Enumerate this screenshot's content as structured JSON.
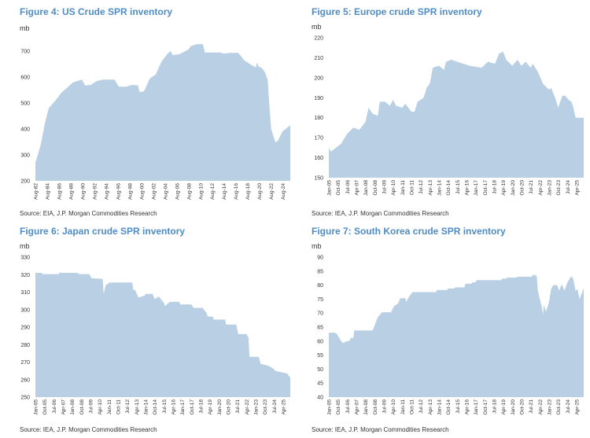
{
  "colors": {
    "title": "#4f8cc4",
    "fill": "#b9cfe4"
  },
  "chart_data": [
    {
      "type": "area",
      "title": "Figure 4: US Crude SPR inventory",
      "ylabel": "mb",
      "source": "Source: EIA, J.P. Morgan Commodities Research",
      "ylim": [
        200,
        700
      ],
      "yticks": [
        "200",
        "300",
        "400",
        "500",
        "600",
        "700"
      ],
      "xlim": [
        "1982-08",
        "2025-11"
      ],
      "xticks": [
        "Aug-82",
        "Aug-84",
        "Aug-86",
        "Aug-88",
        "Aug-90",
        "Aug-92",
        "Aug-94",
        "Aug-96",
        "Aug-98",
        "Aug-00",
        "Aug-02",
        "Aug-04",
        "Aug-06",
        "Aug-08",
        "Aug-10",
        "Aug-12",
        "Aug-14",
        "Aug-16",
        "Aug-18",
        "Aug-20",
        "Aug-22",
        "Aug-24"
      ],
      "grid": false,
      "x": [
        "1982-08",
        "1983-07",
        "1984-03",
        "1984-11",
        "1986-01",
        "1987-01",
        "1988-01",
        "1989-01",
        "1990-07",
        "1991-01",
        "1992-01",
        "1993-01",
        "1994-01",
        "1996-01",
        "1996-10",
        "1998-01",
        "1999-01",
        "2000-01",
        "2000-04",
        "2001-01",
        "2002-01",
        "2003-01",
        "2004-01",
        "2005-01",
        "2005-08",
        "2005-11",
        "2007-01",
        "2008-01",
        "2008-07",
        "2009-01",
        "2010-01",
        "2011-01",
        "2011-05",
        "2014-01",
        "2014-08",
        "2015-07",
        "2017-01",
        "2017-07",
        "2018-01",
        "2019-01",
        "2020-01",
        "2020-03",
        "2020-07",
        "2021-01",
        "2021-07",
        "2022-01",
        "2022-04",
        "2022-08",
        "2023-01",
        "2023-05",
        "2023-10",
        "2024-07",
        "2025-11"
      ],
      "values": [
        270,
        340,
        420,
        480,
        510,
        540,
        560,
        580,
        590,
        568,
        570,
        585,
        590,
        590,
        563,
        563,
        570,
        568,
        543,
        545,
        595,
        610,
        660,
        690,
        700,
        685,
        688,
        700,
        705,
        720,
        727,
        727,
        695,
        695,
        690,
        693,
        693,
        680,
        665,
        650,
        637,
        655,
        640,
        635,
        620,
        590,
        500,
        400,
        370,
        348,
        355,
        390,
        415
      ]
    },
    {
      "type": "area",
      "title": "Figure 5: Europe crude SPR inventory",
      "ylabel": "mb",
      "source": "Source: IEA, J.P. Morgan Commodities Research",
      "ylim": [
        150,
        220
      ],
      "yticks": [
        "150",
        "160",
        "170",
        "180",
        "190",
        "200",
        "210",
        "220"
      ],
      "xlim": [
        "2005-01",
        "2025-11"
      ],
      "xticks": [
        "Jan-05",
        "Oct-05",
        "Jul-06",
        "Apr-07",
        "Jan-08",
        "Oct-08",
        "Jul-09",
        "Apr-10",
        "Jan-11",
        "Oct-11",
        "Jul-12",
        "Apr-13",
        "Jan-14",
        "Oct-14",
        "Jul-15",
        "Apr-16",
        "Jan-17",
        "Oct-17",
        "Jul-18",
        "Apr-19",
        "Jan-20",
        "Oct-20",
        "Jul-21",
        "Apr-22",
        "Jan-23",
        "Oct-23",
        "Jul-24",
        "Apr-25"
      ],
      "grid": false,
      "x": [
        "2005-01",
        "2005-03",
        "2006-01",
        "2006-07",
        "2007-01",
        "2007-07",
        "2008-01",
        "2008-04",
        "2008-08",
        "2009-01",
        "2009-03",
        "2009-08",
        "2010-01",
        "2010-04",
        "2010-07",
        "2011-01",
        "2011-04",
        "2011-10",
        "2012-01",
        "2012-04",
        "2012-10",
        "2013-01",
        "2013-04",
        "2013-07",
        "2014-01",
        "2014-06",
        "2014-08",
        "2015-01",
        "2016-01",
        "2016-07",
        "2017-07",
        "2018-01",
        "2018-08",
        "2018-12",
        "2019-04",
        "2019-07",
        "2020-01",
        "2020-06",
        "2020-10",
        "2021-02",
        "2021-07",
        "2021-09",
        "2022-02",
        "2022-07",
        "2023-01",
        "2023-03",
        "2023-07",
        "2023-10",
        "2024-02",
        "2024-05",
        "2024-08",
        "2024-11",
        "2025-01",
        "2025-03",
        "2025-11"
      ],
      "values": [
        165,
        163,
        167,
        172,
        175,
        174,
        178,
        185,
        182,
        181,
        188,
        188,
        186,
        189,
        186,
        185,
        187,
        183,
        183,
        188,
        190,
        195,
        197,
        205,
        206,
        204,
        208,
        209,
        207,
        206,
        205,
        208,
        207,
        212,
        213,
        209,
        206,
        209,
        206,
        208,
        205,
        207,
        203,
        197,
        194,
        195,
        190,
        185,
        191,
        191,
        189,
        188,
        185,
        180,
        180
      ]
    },
    {
      "type": "area",
      "title": "Figure 6: Japan crude SPR inventory",
      "ylabel": "mb",
      "source": "Source: IEA, J.P. Morgan Commodities Research",
      "ylim": [
        250,
        330
      ],
      "yticks": [
        "250",
        "260",
        "270",
        "280",
        "290",
        "300",
        "310",
        "320",
        "330"
      ],
      "xlim": [
        "2005-01",
        "2025-11"
      ],
      "xticks": [
        "Jan-05",
        "Oct-05",
        "Jul-06",
        "Apr-07",
        "Jan-08",
        "Oct-08",
        "Jul-09",
        "Apr-10",
        "Jan-11",
        "Oct-11",
        "Jul-12",
        "Apr-13",
        "Jan-14",
        "Oct-14",
        "Jul-15",
        "Apr-16",
        "Jan-17",
        "Oct-17",
        "Jul-18",
        "Apr-19",
        "Jan-20",
        "Oct-20",
        "Jul-21",
        "Apr-22",
        "Jan-23",
        "Oct-23",
        "Jul-24",
        "Apr-25"
      ],
      "grid": false,
      "x": [
        "2005-01",
        "2005-07",
        "2005-08",
        "2006-12",
        "2007-01",
        "2007-02",
        "2008-06",
        "2008-08",
        "2009-06",
        "2009-08",
        "2010-07",
        "2010-08",
        "2010-10",
        "2011-02",
        "2012-12",
        "2013-01",
        "2013-03",
        "2013-06",
        "2013-12",
        "2014-01",
        "2014-08",
        "2014-10",
        "2015-02",
        "2015-07",
        "2015-08",
        "2016-01",
        "2016-10",
        "2016-11",
        "2017-10",
        "2017-12",
        "2018-09",
        "2019-01",
        "2019-02",
        "2019-07",
        "2019-08",
        "2020-07",
        "2020-08",
        "2021-06",
        "2021-08",
        "2022-04",
        "2022-06",
        "2022-07",
        "2023-04",
        "2023-06",
        "2024-01",
        "2024-03",
        "2024-07",
        "2024-08",
        "2025-04",
        "2025-08",
        "2025-11"
      ],
      "values": [
        321,
        321,
        320.3,
        320.3,
        321.5,
        321,
        321,
        320.3,
        320.3,
        318,
        317.5,
        309,
        314,
        315.5,
        315.5,
        311.5,
        311,
        307,
        308,
        309,
        309,
        306,
        307.5,
        304,
        302,
        304.5,
        304.5,
        303,
        303,
        301,
        301,
        298,
        296,
        296,
        294.3,
        294.3,
        291.5,
        291.5,
        286,
        286,
        284,
        273,
        273,
        269,
        268,
        267.5,
        266,
        265,
        264,
        263.5,
        261
      ]
    },
    {
      "type": "area",
      "title": "Figure 7: South Korea crude SPR inventory",
      "ylabel": "mb",
      "source": "Source: IEA, J.P. Morgan Commodities Research",
      "ylim": [
        40,
        90
      ],
      "yticks": [
        "40",
        "45",
        "50",
        "55",
        "60",
        "65",
        "70",
        "75",
        "80",
        "85",
        "90"
      ],
      "xlim": [
        "2005-01",
        "2025-11"
      ],
      "xticks": [
        "Jan-05",
        "Oct-05",
        "Jul-06",
        "Apr-07",
        "Jan-08",
        "Oct-08",
        "Jul-09",
        "Apr-10",
        "Jan-11",
        "Oct-11",
        "Jul-12",
        "Apr-13",
        "Jan-14",
        "Oct-14",
        "Jul-15",
        "Apr-16",
        "Jan-17",
        "Oct-17",
        "Jul-18",
        "Apr-19",
        "Jan-20",
        "Oct-20",
        "Jul-21",
        "Apr-22",
        "Jan-23",
        "Oct-23",
        "Jul-24",
        "Apr-25"
      ],
      "grid": false,
      "x": [
        "2005-01",
        "2005-07",
        "2005-09",
        "2006-01",
        "2006-03",
        "2006-07",
        "2006-09",
        "2006-11",
        "2007-01",
        "2007-02",
        "2008-08",
        "2009-01",
        "2009-05",
        "2010-02",
        "2010-05",
        "2010-09",
        "2010-11",
        "2011-04",
        "2011-05",
        "2011-07",
        "2011-11",
        "2013-10",
        "2013-11",
        "2014-09",
        "2014-10",
        "2015-04",
        "2015-05",
        "2016-02",
        "2016-03",
        "2016-09",
        "2016-10",
        "2017-01",
        "2017-02",
        "2019-02",
        "2019-03",
        "2019-07",
        "2019-08",
        "2020-05",
        "2020-06",
        "2021-08",
        "2021-09",
        "2021-12",
        "2022-01",
        "2022-02",
        "2022-05",
        "2022-06",
        "2022-07",
        "2022-08",
        "2022-10",
        "2023-01",
        "2023-03",
        "2023-05",
        "2023-09",
        "2023-11",
        "2024-01",
        "2024-02",
        "2024-04",
        "2024-07",
        "2024-11",
        "2025-01",
        "2025-03",
        "2025-05",
        "2025-07",
        "2025-11"
      ],
      "values": [
        63,
        63,
        62.5,
        60,
        59.3,
        60,
        60,
        61.3,
        61,
        63.8,
        63.8,
        68.5,
        70.3,
        70.3,
        72.5,
        73.5,
        75.3,
        75.3,
        74,
        75.5,
        77.5,
        77.5,
        78.3,
        78.3,
        78.8,
        78.8,
        79.2,
        79.2,
        80.5,
        80.5,
        81,
        81,
        81.8,
        81.8,
        82.3,
        82.3,
        82.7,
        82.7,
        83,
        83,
        83.7,
        83.5,
        83,
        78,
        73.5,
        72,
        69.5,
        73,
        70.5,
        74,
        78.5,
        80,
        80,
        78,
        80,
        80,
        78,
        81,
        83.3,
        82,
        78,
        78.5,
        75,
        79
      ]
    }
  ]
}
